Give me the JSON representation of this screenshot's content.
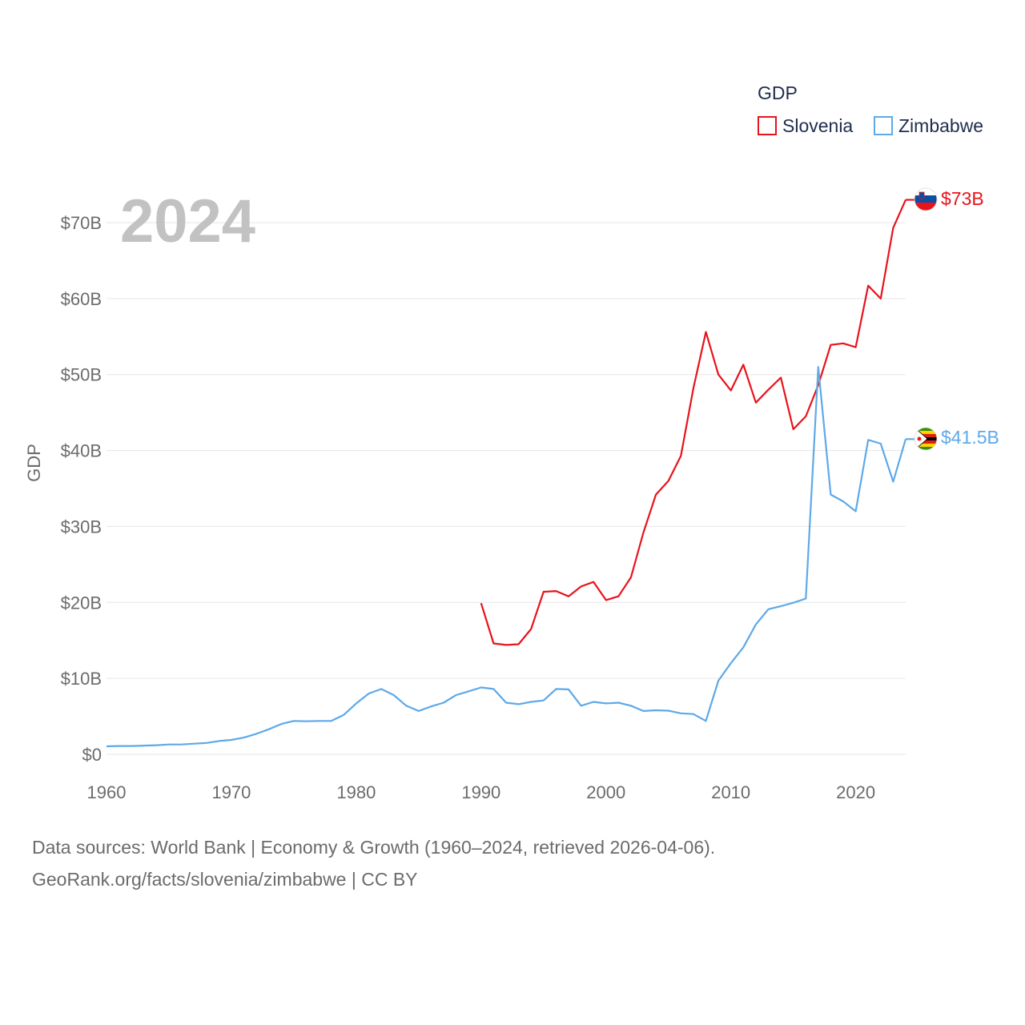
{
  "colors": {
    "slovenia": "#e8131b",
    "zimbabwe": "#5ea9e8",
    "grid": "#e6e6e6",
    "text": "#6b6b6b",
    "year": "#c2c2c2"
  },
  "year_label": "2024",
  "legend": {
    "title": "GDP",
    "items": [
      "Slovenia",
      "Zimbabwe"
    ]
  },
  "footer": {
    "line1": "Data sources: World Bank | Economy & Growth (1960–2024, retrieved 2026-04-06).",
    "line2": "GeoRank.org/facts/slovenia/zimbabwe | CC BY"
  },
  "chart_data": {
    "type": "line",
    "title": "GDP",
    "xlabel": "",
    "ylabel": "GDP",
    "xlim": [
      1960,
      2024
    ],
    "ylim": [
      0,
      70
    ],
    "x_ticks": [
      1960,
      1970,
      1980,
      1990,
      2000,
      2010,
      2020
    ],
    "y_ticks": [
      0,
      10,
      20,
      30,
      40,
      50,
      60,
      70
    ],
    "y_tick_labels": [
      "$0",
      "$10B",
      "$20B",
      "$30B",
      "$40B",
      "$50B",
      "$60B",
      "$70B"
    ],
    "unit": "billion USD",
    "series": [
      {
        "name": "Slovenia",
        "color": "#e8131b",
        "end_label": "$73B",
        "x": [
          1990,
          1991,
          1992,
          1993,
          1994,
          1995,
          1996,
          1997,
          1998,
          1999,
          2000,
          2001,
          2002,
          2003,
          2004,
          2005,
          2006,
          2007,
          2008,
          2009,
          2010,
          2011,
          2012,
          2013,
          2014,
          2015,
          2016,
          2017,
          2018,
          2019,
          2020,
          2021,
          2022,
          2023,
          2024
        ],
        "values": [
          19.9,
          14.6,
          14.4,
          14.5,
          16.5,
          21.4,
          21.5,
          20.8,
          22.1,
          22.7,
          20.3,
          20.8,
          23.3,
          29.2,
          34.2,
          36.0,
          39.3,
          48.2,
          55.6,
          50.0,
          47.9,
          51.3,
          46.3,
          48.0,
          49.6,
          42.8,
          44.5,
          48.6,
          53.9,
          54.1,
          53.6,
          61.7,
          60.0,
          69.3,
          73.0
        ]
      },
      {
        "name": "Zimbabwe",
        "color": "#5ea9e8",
        "end_label": "$41.5B",
        "x": [
          1960,
          1961,
          1962,
          1963,
          1964,
          1965,
          1966,
          1967,
          1968,
          1969,
          1970,
          1971,
          1972,
          1973,
          1974,
          1975,
          1976,
          1977,
          1978,
          1979,
          1980,
          1981,
          1982,
          1983,
          1984,
          1985,
          1986,
          1987,
          1988,
          1989,
          1990,
          1991,
          1992,
          1993,
          1994,
          1995,
          1996,
          1997,
          1998,
          1999,
          2000,
          2001,
          2002,
          2003,
          2004,
          2005,
          2006,
          2007,
          2008,
          2009,
          2010,
          2011,
          2012,
          2013,
          2014,
          2015,
          2016,
          2017,
          2018,
          2019,
          2020,
          2021,
          2022,
          2023,
          2024
        ],
        "values": [
          1.05,
          1.1,
          1.1,
          1.15,
          1.2,
          1.3,
          1.3,
          1.4,
          1.5,
          1.75,
          1.9,
          2.2,
          2.7,
          3.3,
          4.0,
          4.4,
          4.35,
          4.4,
          4.4,
          5.2,
          6.7,
          8.0,
          8.6,
          7.8,
          6.4,
          5.7,
          6.3,
          6.8,
          7.8,
          8.3,
          8.8,
          8.6,
          6.8,
          6.6,
          6.9,
          7.1,
          8.6,
          8.55,
          6.4,
          6.9,
          6.7,
          6.8,
          6.4,
          5.7,
          5.8,
          5.75,
          5.4,
          5.3,
          4.4,
          9.7,
          12.0,
          14.1,
          17.1,
          19.1,
          19.5,
          19.96,
          20.5,
          51.0,
          34.2,
          33.3,
          32.0,
          41.4,
          40.9,
          35.9,
          41.5
        ]
      }
    ]
  }
}
